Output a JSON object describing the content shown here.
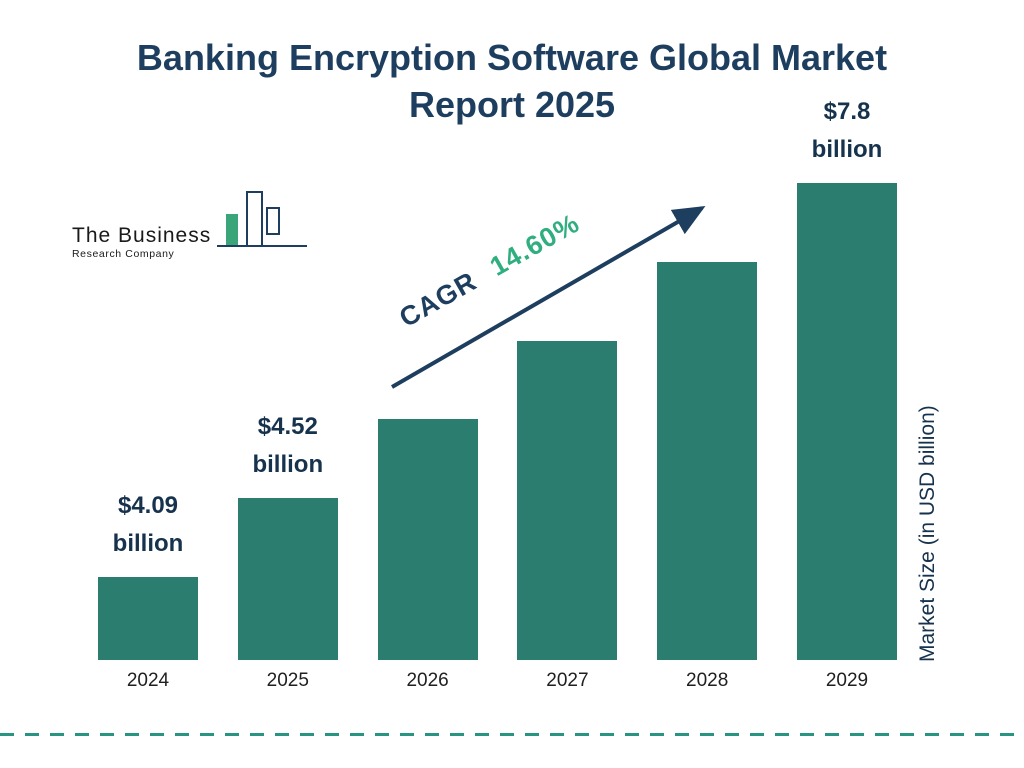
{
  "header": {
    "title_line1": "Banking Encryption Software Global Market",
    "title_line2": "Report 2025"
  },
  "logo": {
    "line1": "The Business",
    "line2": "Research Company"
  },
  "chart_data": {
    "type": "bar",
    "title": "Banking Encryption Software Global Market Report 2025",
    "categories": [
      "2024",
      "2025",
      "2026",
      "2027",
      "2028",
      "2029"
    ],
    "values": [
      4.09,
      4.52,
      5.18,
      5.94,
      6.8,
      7.8
    ],
    "data_labels": [
      {
        "index": 0,
        "line1": "$4.09",
        "line2": "billion"
      },
      {
        "index": 1,
        "line1": "$4.52",
        "line2": "billion"
      },
      {
        "index": 5,
        "line1": "$7.8",
        "line2": "billion"
      }
    ],
    "xlabel": "",
    "ylabel": "Market Size (in USD billion)",
    "ylim": [
      0,
      8
    ],
    "grid": false,
    "legend": "none",
    "annotation": {
      "label": "CAGR",
      "value": "14.60%"
    },
    "bar_color": "#2b7e6f",
    "colors": {
      "bars": "#2b7e6f",
      "title_navy": "#1d3e5e",
      "cagr_green": "#2fae7f",
      "arrow_navy": "#1d3e5e",
      "dashed_line_teal": "#2a9483"
    }
  }
}
